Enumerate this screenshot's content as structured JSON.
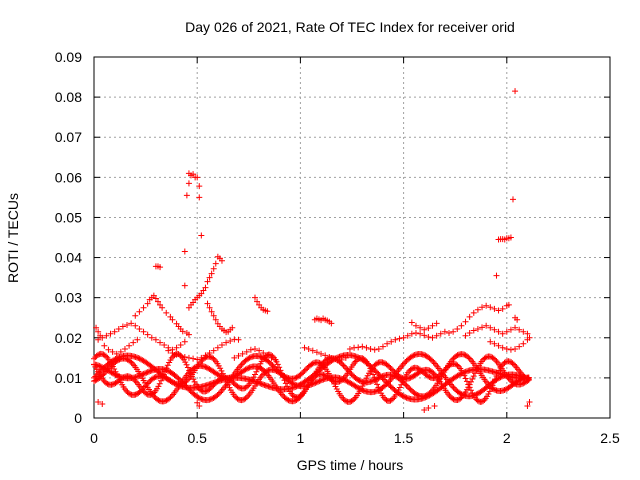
{
  "chart_data": {
    "type": "scatter",
    "title": "Day 026 of 2021, Rate Of TEC Index for receiver orid",
    "xlabel": "GPS time / hours",
    "ylabel": "ROTI / TECUs",
    "xlim": [
      0,
      2.5
    ],
    "ylim": [
      0,
      0.09
    ],
    "x_ticks": [
      "0",
      "0.5",
      "1",
      "1.5",
      "2",
      "2.5"
    ],
    "y_ticks": [
      "0",
      "0.01",
      "0.02",
      "0.03",
      "0.04",
      "0.05",
      "0.06",
      "0.07",
      "0.08",
      "0.09"
    ],
    "grid": true,
    "marker": "+",
    "color": "#ff0000",
    "points": [
      [
        0.46,
        0.061
      ],
      [
        0.47,
        0.0605
      ],
      [
        0.48,
        0.0608
      ],
      [
        0.49,
        0.06
      ],
      [
        0.5,
        0.06
      ],
      [
        0.46,
        0.0585
      ],
      [
        0.51,
        0.0578
      ],
      [
        0.45,
        0.0555
      ],
      [
        0.51,
        0.055
      ],
      [
        0.52,
        0.0455
      ],
      [
        0.44,
        0.0415
      ],
      [
        0.3,
        0.0378
      ],
      [
        0.31,
        0.0378
      ],
      [
        0.32,
        0.0376
      ],
      [
        0.6,
        0.0402
      ],
      [
        0.61,
        0.0398
      ],
      [
        0.62,
        0.0392
      ],
      [
        0.59,
        0.0385
      ],
      [
        0.58,
        0.0372
      ],
      [
        0.57,
        0.036
      ],
      [
        0.56,
        0.035
      ],
      [
        0.55,
        0.034
      ],
      [
        0.54,
        0.0325
      ],
      [
        0.53,
        0.0318
      ],
      [
        0.52,
        0.031
      ],
      [
        0.51,
        0.0305
      ],
      [
        0.5,
        0.03
      ],
      [
        0.49,
        0.0295
      ],
      [
        0.48,
        0.0288
      ],
      [
        0.47,
        0.0282
      ],
      [
        0.46,
        0.0275
      ],
      [
        0.55,
        0.0285
      ],
      [
        0.56,
        0.0275
      ],
      [
        0.57,
        0.0265
      ],
      [
        0.58,
        0.0255
      ],
      [
        0.59,
        0.0245
      ],
      [
        0.6,
        0.0235
      ],
      [
        0.61,
        0.0228
      ],
      [
        0.62,
        0.0222
      ],
      [
        0.63,
        0.0218
      ],
      [
        0.64,
        0.0214
      ],
      [
        0.65,
        0.0215
      ],
      [
        0.66,
        0.022
      ],
      [
        0.67,
        0.0225
      ],
      [
        0.44,
        0.033
      ],
      [
        0.78,
        0.03
      ],
      [
        0.79,
        0.029
      ],
      [
        0.8,
        0.0282
      ],
      [
        0.81,
        0.0275
      ],
      [
        0.82,
        0.027
      ],
      [
        0.83,
        0.0268
      ],
      [
        0.84,
        0.0266
      ],
      [
        0.2,
        0.0255
      ],
      [
        0.22,
        0.0265
      ],
      [
        0.24,
        0.0275
      ],
      [
        0.26,
        0.0285
      ],
      [
        0.27,
        0.0295
      ],
      [
        0.28,
        0.03
      ],
      [
        0.29,
        0.0305
      ],
      [
        0.3,
        0.0298
      ],
      [
        0.31,
        0.029
      ],
      [
        0.32,
        0.0282
      ],
      [
        0.33,
        0.0275
      ],
      [
        0.35,
        0.0262
      ],
      [
        0.37,
        0.0252
      ],
      [
        0.38,
        0.0245
      ],
      [
        0.4,
        0.0235
      ],
      [
        0.41,
        0.0228
      ],
      [
        0.42,
        0.0222
      ],
      [
        0.43,
        0.0216
      ],
      [
        0.45,
        0.0212
      ],
      [
        0.46,
        0.0208
      ],
      [
        0.02,
        0.0195
      ],
      [
        0.04,
        0.02
      ],
      [
        0.06,
        0.0205
      ],
      [
        0.08,
        0.021
      ],
      [
        0.1,
        0.0215
      ],
      [
        0.12,
        0.0222
      ],
      [
        0.14,
        0.0228
      ],
      [
        0.16,
        0.0232
      ],
      [
        0.18,
        0.0236
      ],
      [
        0.2,
        0.023
      ],
      [
        0.22,
        0.0222
      ],
      [
        0.24,
        0.0215
      ],
      [
        0.26,
        0.0208
      ],
      [
        0.28,
        0.02
      ],
      [
        0.3,
        0.0195
      ],
      [
        0.32,
        0.0188
      ],
      [
        0.34,
        0.0182
      ],
      [
        0.36,
        0.0175
      ],
      [
        0.38,
        0.017
      ],
      [
        0.4,
        0.0175
      ],
      [
        0.42,
        0.0182
      ],
      [
        0.44,
        0.019
      ],
      [
        0.01,
        0.0225
      ],
      [
        0.02,
        0.0215
      ],
      [
        0.03,
        0.0205
      ],
      [
        0.05,
        0.018
      ],
      [
        0.07,
        0.017
      ],
      [
        0.09,
        0.0165
      ],
      [
        0.11,
        0.016
      ],
      [
        0.13,
        0.0165
      ],
      [
        0.15,
        0.0172
      ],
      [
        0.17,
        0.018
      ],
      [
        0.19,
        0.0188
      ],
      [
        0.21,
        0.0195
      ],
      [
        0.36,
        0.0168
      ],
      [
        0.38,
        0.0162
      ],
      [
        0.4,
        0.0158
      ],
      [
        0.42,
        0.0155
      ],
      [
        0.44,
        0.0152
      ],
      [
        0.46,
        0.015
      ],
      [
        0.48,
        0.0148
      ],
      [
        0.5,
        0.0146
      ],
      [
        0.52,
        0.015
      ],
      [
        0.54,
        0.0156
      ],
      [
        0.56,
        0.0162
      ],
      [
        0.58,
        0.0168
      ],
      [
        0.6,
        0.0175
      ],
      [
        0.62,
        0.0182
      ],
      [
        0.64,
        0.0188
      ],
      [
        0.66,
        0.0192
      ],
      [
        0.68,
        0.0196
      ],
      [
        0.7,
        0.0195
      ],
      [
        0.68,
        0.015
      ],
      [
        0.7,
        0.0155
      ],
      [
        0.72,
        0.016
      ],
      [
        0.74,
        0.0165
      ],
      [
        0.76,
        0.017
      ],
      [
        0.78,
        0.0172
      ],
      [
        0.8,
        0.0168
      ],
      [
        0.82,
        0.0162
      ],
      [
        0.84,
        0.0156
      ],
      [
        0.86,
        0.015
      ],
      [
        0.88,
        0.0145
      ],
      [
        1.07,
        0.0245
      ],
      [
        1.08,
        0.0248
      ],
      [
        1.09,
        0.0246
      ],
      [
        1.1,
        0.0244
      ],
      [
        1.11,
        0.0248
      ],
      [
        1.12,
        0.0245
      ],
      [
        1.13,
        0.0243
      ],
      [
        1.14,
        0.024
      ],
      [
        1.15,
        0.0236
      ],
      [
        1.02,
        0.0175
      ],
      [
        1.04,
        0.0172
      ],
      [
        1.06,
        0.0168
      ],
      [
        1.08,
        0.0164
      ],
      [
        1.1,
        0.016
      ],
      [
        1.12,
        0.0156
      ],
      [
        1.14,
        0.0152
      ],
      [
        1.16,
        0.0148
      ],
      [
        1.18,
        0.0144
      ],
      [
        1.2,
        0.0145
      ],
      [
        1.22,
        0.015
      ],
      [
        1.24,
        0.0172
      ],
      [
        1.26,
        0.0175
      ],
      [
        1.28,
        0.0176
      ],
      [
        1.3,
        0.0178
      ],
      [
        1.32,
        0.0175
      ],
      [
        1.34,
        0.0172
      ],
      [
        1.36,
        0.017
      ],
      [
        1.38,
        0.0172
      ],
      [
        1.4,
        0.0178
      ],
      [
        1.42,
        0.0185
      ],
      [
        1.44,
        0.019
      ],
      [
        1.46,
        0.0195
      ],
      [
        1.48,
        0.0198
      ],
      [
        1.5,
        0.02
      ],
      [
        1.52,
        0.0205
      ],
      [
        1.54,
        0.021
      ],
      [
        1.56,
        0.0212
      ],
      [
        1.58,
        0.021
      ],
      [
        1.6,
        0.0206
      ],
      [
        1.62,
        0.0202
      ],
      [
        1.64,
        0.02
      ],
      [
        1.66,
        0.0205
      ],
      [
        1.68,
        0.021
      ],
      [
        1.7,
        0.0215
      ],
      [
        1.72,
        0.0212
      ],
      [
        1.54,
        0.0238
      ],
      [
        1.56,
        0.023
      ],
      [
        1.58,
        0.0225
      ],
      [
        1.6,
        0.022
      ],
      [
        1.62,
        0.0224
      ],
      [
        1.64,
        0.023
      ],
      [
        1.66,
        0.0236
      ],
      [
        1.74,
        0.0215
      ],
      [
        1.76,
        0.0222
      ],
      [
        1.78,
        0.023
      ],
      [
        1.8,
        0.024
      ],
      [
        1.82,
        0.0252
      ],
      [
        1.84,
        0.0262
      ],
      [
        1.86,
        0.027
      ],
      [
        1.88,
        0.0276
      ],
      [
        1.9,
        0.028
      ],
      [
        1.92,
        0.0276
      ],
      [
        1.94,
        0.0272
      ],
      [
        1.96,
        0.0268
      ],
      [
        1.98,
        0.0272
      ],
      [
        2.0,
        0.028
      ],
      [
        2.01,
        0.0282
      ],
      [
        1.8,
        0.0205
      ],
      [
        1.82,
        0.0212
      ],
      [
        1.84,
        0.0218
      ],
      [
        1.86,
        0.0222
      ],
      [
        1.88,
        0.0226
      ],
      [
        1.9,
        0.023
      ],
      [
        1.92,
        0.0225
      ],
      [
        1.94,
        0.022
      ],
      [
        1.96,
        0.0215
      ],
      [
        1.98,
        0.021
      ],
      [
        2.0,
        0.0215
      ],
      [
        2.02,
        0.022
      ],
      [
        2.04,
        0.0225
      ],
      [
        2.06,
        0.022
      ],
      [
        2.08,
        0.0215
      ],
      [
        2.1,
        0.021
      ],
      [
        1.95,
        0.0355
      ],
      [
        1.96,
        0.0445
      ],
      [
        1.97,
        0.0446
      ],
      [
        1.98,
        0.0446
      ],
      [
        1.99,
        0.0445
      ],
      [
        2.0,
        0.0448
      ],
      [
        2.01,
        0.0448
      ],
      [
        2.02,
        0.045
      ],
      [
        2.03,
        0.0545
      ],
      [
        2.04,
        0.0815
      ],
      [
        2.04,
        0.025
      ],
      [
        2.05,
        0.0245
      ],
      [
        1.92,
        0.019
      ],
      [
        1.94,
        0.0185
      ],
      [
        1.96,
        0.018
      ],
      [
        1.98,
        0.0175
      ],
      [
        2.0,
        0.0172
      ],
      [
        2.02,
        0.017
      ],
      [
        2.04,
        0.0172
      ],
      [
        2.06,
        0.0178
      ],
      [
        2.08,
        0.0185
      ],
      [
        2.1,
        0.0195
      ],
      [
        2.11,
        0.02
      ],
      [
        0.51,
        0.003
      ],
      [
        0.5,
        0.0038
      ],
      [
        1.6,
        0.002
      ],
      [
        1.62,
        0.0025
      ],
      [
        1.65,
        0.003
      ],
      [
        2.1,
        0.003
      ],
      [
        2.11,
        0.004
      ],
      [
        0.02,
        0.004
      ],
      [
        0.04,
        0.0035
      ]
    ],
    "band": {
      "x_start": 0.0,
      "x_end": 2.11,
      "x_step": 0.0065,
      "y_min": 0.004,
      "y_max": 0.016,
      "strands": 5
    }
  }
}
